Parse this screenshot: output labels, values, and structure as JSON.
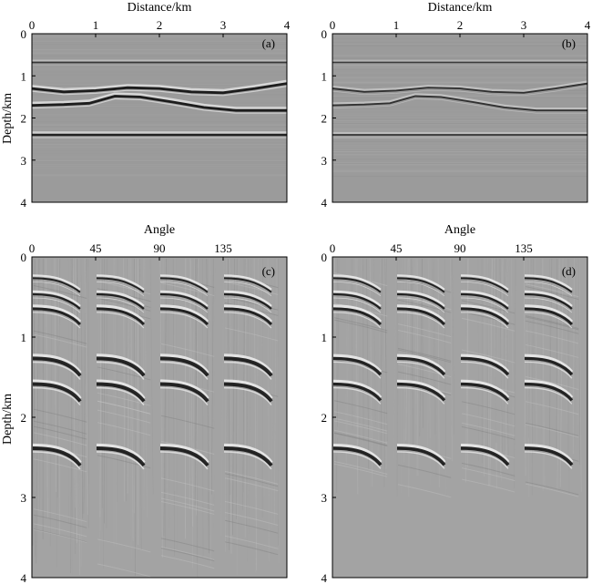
{
  "colors": {
    "background": "#9b9b9b",
    "panel_bg_gathers": "#a3a3a3",
    "reflector_dark": "#141414",
    "reflector_light": "#f0f0f0",
    "frame": "#000000"
  },
  "chart_data": [
    {
      "id": "a",
      "type": "heatmap",
      "panel_label": "(a)",
      "xlabel": "Distance/km",
      "ylabel": "Depth/km",
      "xlim": [
        0,
        4
      ],
      "ylim": [
        0,
        4
      ],
      "xticks": [
        "0",
        "1",
        "2",
        "3",
        "4"
      ],
      "yticks": [
        "0",
        "1",
        "2",
        "3",
        "4"
      ],
      "reflectors": [
        {
          "name": "flat-0.68",
          "points": [
            [
              0,
              0.68
            ],
            [
              4,
              0.68
            ]
          ],
          "strength": 0.5
        },
        {
          "name": "wavy-1.3",
          "points": [
            [
              0,
              1.3
            ],
            [
              0.5,
              1.38
            ],
            [
              1.0,
              1.35
            ],
            [
              1.5,
              1.28
            ],
            [
              2.0,
              1.3
            ],
            [
              2.5,
              1.38
            ],
            [
              3.0,
              1.4
            ],
            [
              3.5,
              1.3
            ],
            [
              4,
              1.18
            ]
          ],
          "strength": 1.0
        },
        {
          "name": "wavy-1.7",
          "points": [
            [
              0,
              1.7
            ],
            [
              0.5,
              1.68
            ],
            [
              0.9,
              1.65
            ],
            [
              1.3,
              1.48
            ],
            [
              1.7,
              1.5
            ],
            [
              2.2,
              1.62
            ],
            [
              2.7,
              1.75
            ],
            [
              3.2,
              1.82
            ],
            [
              4,
              1.82
            ]
          ],
          "strength": 1.0
        },
        {
          "name": "flat-2.4",
          "points": [
            [
              0,
              2.4
            ],
            [
              4,
              2.4
            ]
          ],
          "strength": 0.9
        }
      ]
    },
    {
      "id": "b",
      "type": "heatmap",
      "panel_label": "(b)",
      "xlabel": "Distance/km",
      "ylabel": "",
      "xlim": [
        0,
        4
      ],
      "ylim": [
        0,
        4
      ],
      "xticks": [
        "0",
        "1",
        "2",
        "3",
        "4"
      ],
      "yticks": [
        "0",
        "1",
        "2",
        "3",
        "4"
      ],
      "reflectors": [
        {
          "name": "flat-0.68",
          "points": [
            [
              0,
              0.68
            ],
            [
              4,
              0.68
            ]
          ],
          "strength": 0.45
        },
        {
          "name": "wavy-1.3",
          "points": [
            [
              0,
              1.3
            ],
            [
              0.5,
              1.38
            ],
            [
              1.0,
              1.35
            ],
            [
              1.5,
              1.28
            ],
            [
              2.0,
              1.3
            ],
            [
              2.5,
              1.38
            ],
            [
              3.0,
              1.4
            ],
            [
              3.5,
              1.3
            ],
            [
              4,
              1.18
            ]
          ],
          "strength": 0.6
        },
        {
          "name": "wavy-1.7",
          "points": [
            [
              0,
              1.7
            ],
            [
              0.5,
              1.68
            ],
            [
              0.9,
              1.65
            ],
            [
              1.3,
              1.48
            ],
            [
              1.7,
              1.5
            ],
            [
              2.2,
              1.62
            ],
            [
              2.7,
              1.75
            ],
            [
              3.2,
              1.82
            ],
            [
              4,
              1.82
            ]
          ],
          "strength": 0.6
        },
        {
          "name": "flat-2.4",
          "points": [
            [
              0,
              2.4
            ],
            [
              4,
              2.4
            ]
          ],
          "strength": 0.55
        }
      ]
    },
    {
      "id": "c",
      "type": "heatmap",
      "panel_label": "(c)",
      "xlabel": "Angle",
      "ylabel": "Depth/km",
      "xlim": [
        0,
        180
      ],
      "ylim": [
        0,
        4
      ],
      "xticks": [
        "0",
        "45",
        "90",
        "135"
      ],
      "xtick_values": [
        0,
        45,
        90,
        135
      ],
      "yticks": [
        "0",
        "1",
        "2",
        "3",
        "4"
      ],
      "gather_starts": [
        0,
        45,
        90,
        135
      ],
      "gather_width": 40,
      "events_depth": [
        0.3,
        0.5,
        0.68,
        1.3,
        1.62,
        2.42
      ],
      "event_strength": [
        0.4,
        0.5,
        0.7,
        1.0,
        1.0,
        1.0
      ],
      "noise_extent": 4.0
    },
    {
      "id": "d",
      "type": "heatmap",
      "panel_label": "(d)",
      "xlabel": "Angle",
      "ylabel": "",
      "xlim": [
        0,
        180
      ],
      "ylim": [
        0,
        4
      ],
      "xticks": [
        "0",
        "45",
        "90",
        "135"
      ],
      "xtick_values": [
        0,
        45,
        90,
        135
      ],
      "yticks": [
        "0",
        "1",
        "2",
        "3",
        "4"
      ],
      "gather_starts": [
        0,
        45,
        90,
        135
      ],
      "gather_width": 40,
      "events_depth": [
        0.3,
        0.5,
        0.68,
        1.3,
        1.62,
        2.42
      ],
      "event_strength": [
        0.4,
        0.5,
        0.7,
        0.8,
        0.8,
        0.9
      ],
      "noise_extent": 3.0
    }
  ]
}
